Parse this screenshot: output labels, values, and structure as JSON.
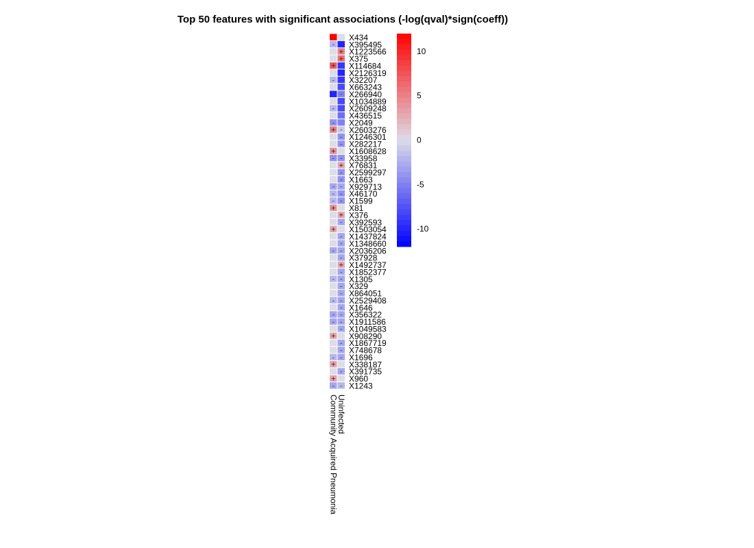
{
  "title": "Top 50 features with significant associations (-log(qval)*sign(coeff))",
  "chart_data": {
    "type": "heatmap",
    "title": "Top 50 features with significant associations (-log(qval)*sign(coeff))",
    "columns": [
      "Community Acquired Pneumonia",
      "Uninfected"
    ],
    "rows": [
      "X434",
      "X395495",
      "X1223566",
      "X375",
      "X114684",
      "X2126319",
      "X32207",
      "X663243",
      "X266940",
      "X1034889",
      "X2609248",
      "X436515",
      "X2049",
      "X2603276",
      "X1246301",
      "X282217",
      "X1608628",
      "X33958",
      "X76831",
      "X2599297",
      "X1663",
      "X929713",
      "X46170",
      "X1599",
      "X81",
      "X376",
      "X392593",
      "X1503054",
      "X1437824",
      "X1348660",
      "X2036206",
      "X37928",
      "X1492737",
      "X1852377",
      "X1305",
      "X329",
      "X864051",
      "X2529408",
      "X1646",
      "X356322",
      "X1911586",
      "X1049583",
      "X908290",
      "X1867719",
      "X748678",
      "X1696",
      "X338187",
      "X391735",
      "X960",
      "X1243"
    ],
    "values": [
      [
        12,
        0
      ],
      [
        -2,
        -10
      ],
      [
        0,
        5
      ],
      [
        0,
        6
      ],
      [
        7,
        -9
      ],
      [
        0,
        -10
      ],
      [
        -2,
        -9
      ],
      [
        0,
        -8
      ],
      [
        -10,
        -5
      ],
      [
        0,
        -8
      ],
      [
        -2,
        -8
      ],
      [
        0,
        -6
      ],
      [
        -4,
        -5
      ],
      [
        5,
        -1
      ],
      [
        0,
        -4
      ],
      [
        0,
        -4
      ],
      [
        4,
        0
      ],
      [
        -4,
        -4
      ],
      [
        0,
        3
      ],
      [
        0,
        -4
      ],
      [
        0,
        -4
      ],
      [
        -3,
        -3
      ],
      [
        -2,
        -4
      ],
      [
        -2,
        -4
      ],
      [
        4,
        0
      ],
      [
        0,
        3
      ],
      [
        0,
        -3
      ],
      [
        3,
        0
      ],
      [
        0,
        -3
      ],
      [
        0,
        -3
      ],
      [
        -3,
        -3
      ],
      [
        0,
        -3
      ],
      [
        0,
        3
      ],
      [
        0,
        -3
      ],
      [
        -2,
        -3
      ],
      [
        0,
        -3
      ],
      [
        0,
        -3
      ],
      [
        -2,
        -3
      ],
      [
        0,
        -3
      ],
      [
        -3,
        -3
      ],
      [
        -3,
        -3
      ],
      [
        0,
        -3
      ],
      [
        3,
        0
      ],
      [
        0,
        -3
      ],
      [
        0,
        -3
      ],
      [
        -2,
        -3
      ],
      [
        3,
        0
      ],
      [
        0,
        -3
      ],
      [
        3,
        0
      ],
      [
        -3,
        -2
      ]
    ],
    "signs": [
      [
        "",
        ""
      ],
      [
        "-",
        ""
      ],
      [
        "",
        "+"
      ],
      [
        "",
        "+"
      ],
      [
        "+",
        ""
      ],
      [
        "",
        ""
      ],
      [
        "-",
        ""
      ],
      [
        "",
        ""
      ],
      [
        "",
        "-"
      ],
      [
        "",
        ""
      ],
      [
        "-",
        ""
      ],
      [
        "",
        ""
      ],
      [
        "-",
        ""
      ],
      [
        "+",
        "-"
      ],
      [
        "",
        "-"
      ],
      [
        "",
        "-"
      ],
      [
        "+",
        ""
      ],
      [
        "-",
        "-"
      ],
      [
        "",
        "+"
      ],
      [
        "",
        "-"
      ],
      [
        "",
        "-"
      ],
      [
        "-",
        "-"
      ],
      [
        "-",
        "-"
      ],
      [
        "-",
        "-"
      ],
      [
        "+",
        ""
      ],
      [
        "",
        "+"
      ],
      [
        "",
        "-"
      ],
      [
        "+",
        ""
      ],
      [
        "",
        "-"
      ],
      [
        "",
        "-"
      ],
      [
        "-",
        "-"
      ],
      [
        "",
        "-"
      ],
      [
        "",
        "+"
      ],
      [
        "",
        "-"
      ],
      [
        "-",
        "-"
      ],
      [
        "",
        "-"
      ],
      [
        "",
        "-"
      ],
      [
        "-",
        "-"
      ],
      [
        "",
        "-"
      ],
      [
        "-",
        "-"
      ],
      [
        "-",
        "-"
      ],
      [
        "",
        "-"
      ],
      [
        "+",
        ""
      ],
      [
        "",
        "-"
      ],
      [
        "",
        "-"
      ],
      [
        "-",
        "-"
      ],
      [
        "+",
        ""
      ],
      [
        "",
        "-"
      ],
      [
        "+",
        ""
      ],
      [
        "-",
        "-"
      ]
    ],
    "color_scale": {
      "min": -12,
      "max": 12,
      "low": "#0000ff",
      "mid": "#dddde8",
      "high": "#ff0000",
      "ticks": [
        10,
        5,
        0,
        -5,
        -10
      ]
    },
    "legend_position": "right"
  }
}
